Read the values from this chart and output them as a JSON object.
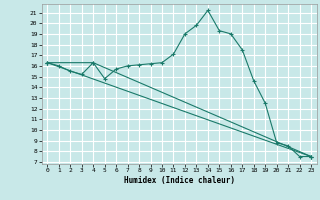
{
  "xlabel": "Humidex (Indice chaleur)",
  "bg_color": "#c8e8e8",
  "grid_color": "#ffffff",
  "line_color": "#1a7a6a",
  "x_ticks": [
    0,
    1,
    2,
    3,
    4,
    5,
    6,
    7,
    8,
    9,
    10,
    11,
    12,
    13,
    14,
    15,
    16,
    17,
    18,
    19,
    20,
    21,
    22,
    23
  ],
  "y_ticks": [
    7,
    8,
    9,
    10,
    11,
    12,
    13,
    14,
    15,
    16,
    17,
    18,
    19,
    20,
    21
  ],
  "xlim": [
    -0.5,
    23.5
  ],
  "ylim": [
    6.8,
    21.8
  ],
  "series1_x": [
    0,
    1,
    2,
    3,
    4,
    5,
    6,
    7,
    8,
    9,
    10,
    11,
    12,
    13,
    14,
    15,
    16,
    17,
    18,
    19,
    20,
    21,
    22,
    23
  ],
  "series1_y": [
    16.3,
    16.0,
    15.5,
    15.2,
    16.3,
    14.8,
    15.7,
    16.0,
    16.1,
    16.2,
    16.3,
    17.1,
    19.0,
    19.8,
    21.2,
    19.3,
    19.0,
    17.5,
    14.6,
    12.5,
    8.8,
    8.5,
    7.5,
    7.5
  ],
  "series2_x": [
    0,
    4,
    23
  ],
  "series2_y": [
    16.3,
    16.3,
    7.5
  ],
  "series3_x": [
    0,
    23
  ],
  "series3_y": [
    16.3,
    7.5
  ]
}
